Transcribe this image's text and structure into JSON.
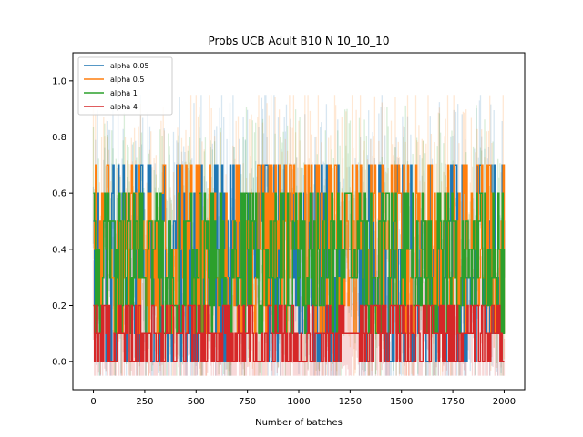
{
  "chart_data": {
    "type": "line",
    "title": "Probs UCB Adult B10 N 10_10_10",
    "xlabel": "Number of batches",
    "ylabel": "",
    "xlim": [
      -100,
      2100
    ],
    "ylim": [
      -0.1,
      1.1
    ],
    "xticks": [
      0,
      250,
      500,
      750,
      1000,
      1250,
      1500,
      1750,
      2000
    ],
    "yticks": [
      0.0,
      0.2,
      0.4,
      0.6,
      0.8,
      1.0
    ],
    "xtick_labels": [
      "0",
      "250",
      "500",
      "750",
      "1000",
      "1250",
      "1500",
      "1750",
      "2000"
    ],
    "ytick_labels": [
      "0.0",
      "0.2",
      "0.4",
      "0.6",
      "0.8",
      "1.0"
    ],
    "grid": false,
    "legend_position": "top-left",
    "x_range_of_series": [
      0,
      2000
    ],
    "series": [
      {
        "name": "alpha 0.05",
        "color": "#1f77b4",
        "value_levels": [
          0.0,
          0.1,
          0.2,
          0.3,
          0.4,
          0.5,
          0.6,
          0.7,
          0.8,
          0.85
        ],
        "typical_range": [
          0.0,
          0.7
        ],
        "notable_levels": [
          {
            "x_range": [
              1200,
              1290
            ],
            "value": 0.4
          }
        ]
      },
      {
        "name": "alpha 0.5",
        "color": "#ff7f0e",
        "value_levels": [
          0.0,
          0.1,
          0.2,
          0.3,
          0.4,
          0.5,
          0.6,
          0.7,
          0.8,
          0.9
        ],
        "typical_range": [
          0.1,
          0.7
        ],
        "notable_levels": []
      },
      {
        "name": "alpha 1",
        "color": "#2ca02c",
        "value_levels": [
          0.0,
          0.1,
          0.2,
          0.3,
          0.4,
          0.5,
          0.6,
          0.7
        ],
        "typical_range": [
          0.1,
          0.6
        ],
        "notable_levels": []
      },
      {
        "name": "alpha 4",
        "color": "#d62728",
        "value_levels": [
          0.0,
          0.1,
          0.2,
          0.3,
          0.4
        ],
        "typical_range": [
          0.0,
          0.2
        ],
        "notable_levels": [
          {
            "x_range": [
              1230,
              1290
            ],
            "value": 0.1
          }
        ]
      }
    ]
  }
}
